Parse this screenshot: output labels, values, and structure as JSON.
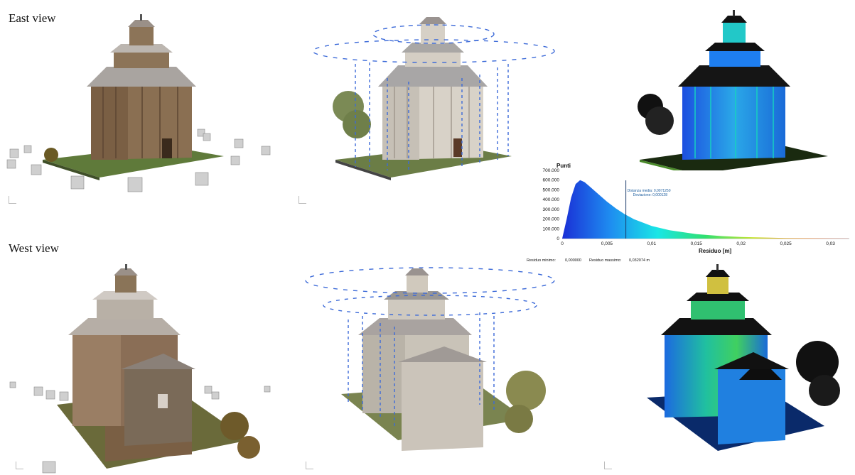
{
  "labels": {
    "east_view": "East view",
    "west_view": "West view"
  },
  "histogram": {
    "ylabel": "Punti",
    "xlabel": "Residuo [m]",
    "mean_label": "Distanza media: 0,0071250",
    "stdev_label": "Deviazione: 0,000128",
    "footer_min_label": "Residuo minimo:",
    "footer_min_value": "0,000000",
    "footer_max_label": "Residuo massimo:",
    "footer_max_value": "0,032074 m"
  },
  "chart_data": {
    "type": "area",
    "ylabel": "Punti",
    "xlabel": "Residuo [m]",
    "y_ticks": [
      "700.000",
      "600.000",
      "500.000",
      "400.000",
      "300.000",
      "200.000",
      "100.000",
      "0"
    ],
    "x_ticks": [
      "0",
      "0,005",
      "0,01",
      "0,015",
      "0,02",
      "0,025",
      "0,03"
    ],
    "ylim": [
      0,
      700000
    ],
    "xlim": [
      0,
      0.0321
    ],
    "mean_x": 0.00712,
    "x": [
      0,
      0.0005,
      0.001,
      0.0015,
      0.002,
      0.0025,
      0.003,
      0.004,
      0.005,
      0.006,
      0.007,
      0.008,
      0.01,
      0.012,
      0.015,
      0.018,
      0.02,
      0.025,
      0.03,
      0.032
    ],
    "y": [
      0,
      200000,
      420000,
      560000,
      600000,
      580000,
      540000,
      460000,
      380000,
      310000,
      250000,
      200000,
      130000,
      85000,
      45000,
      25000,
      16000,
      6000,
      2000,
      1000
    ],
    "gradient": [
      "#1a2fd6",
      "#1e8cf0",
      "#19e6e6",
      "#30e070",
      "#c8e632",
      "#f09020",
      "#e02010"
    ]
  }
}
